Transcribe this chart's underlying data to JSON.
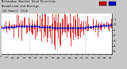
{
  "bg_color": "#c8c8c8",
  "plot_bg_color": "#ffffff",
  "bar_color": "#cc0000",
  "avg_color": "#0000cc",
  "ylim": [
    -5.5,
    2.0
  ],
  "yticks": [
    -5,
    -4,
    -3,
    -2,
    -1,
    0,
    1
  ],
  "grid_color": "#888888",
  "n_points": 96,
  "legend_colors": [
    "#cc0000",
    "#0000cc"
  ],
  "title_lines": [
    "Milwaukee Weather Wind Direction",
    "Normalized and Average",
    "(24 Hours) (Old)"
  ]
}
